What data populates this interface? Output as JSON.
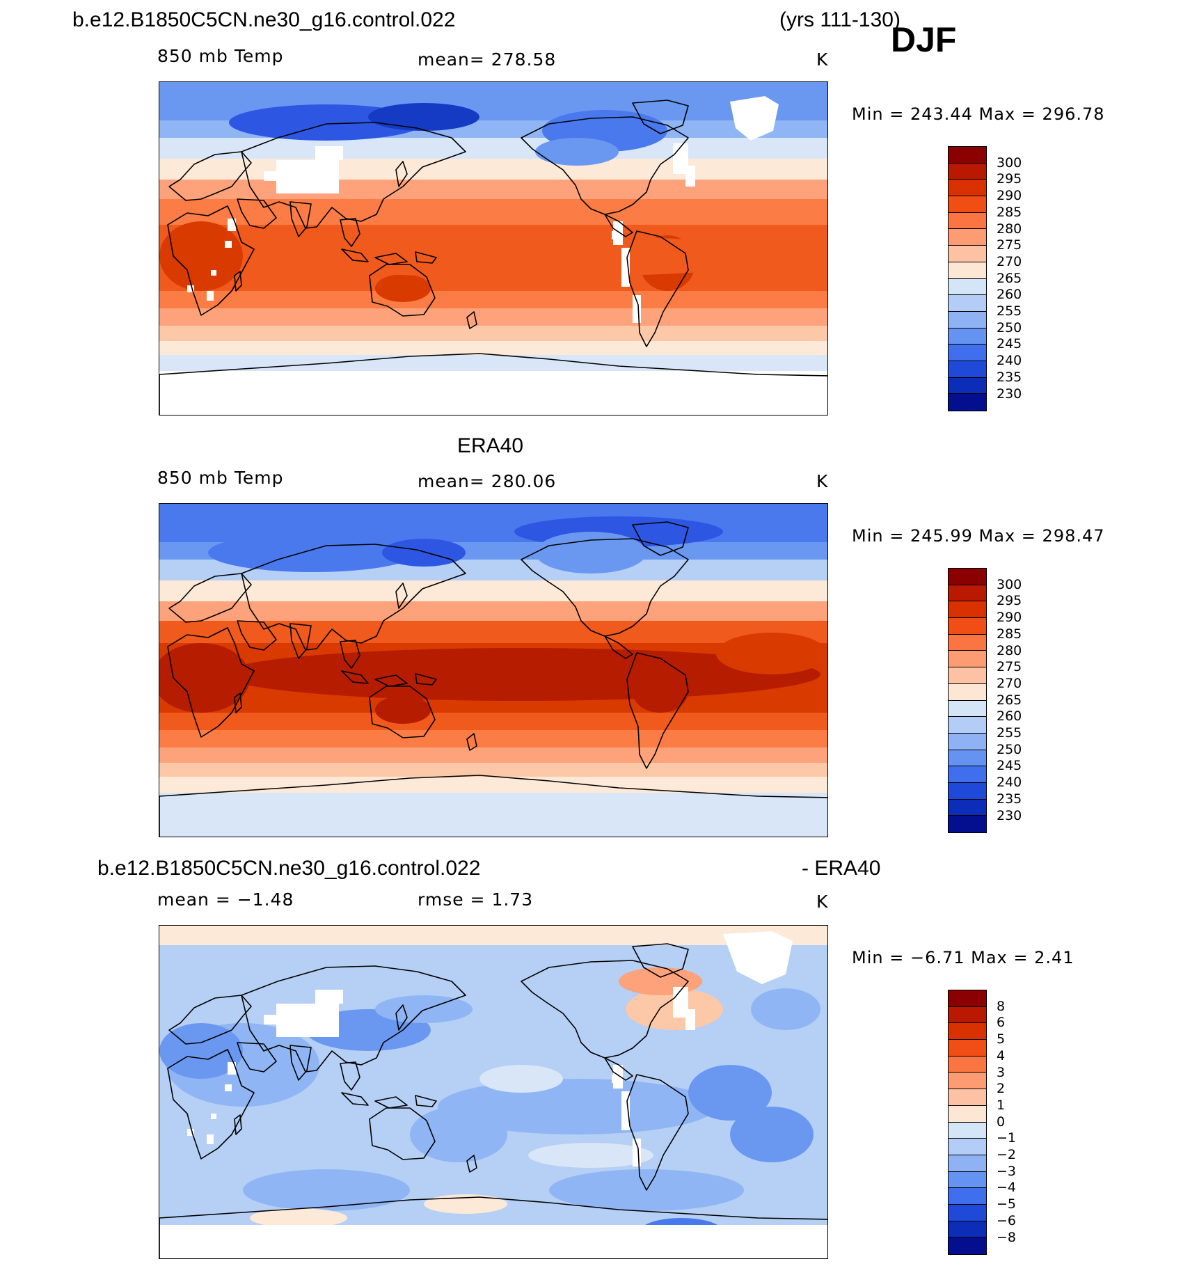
{
  "header": {
    "case_name": "b.e12.B1850C5CN.ne30_g16.control.022",
    "years": "(yrs 111-130)",
    "season": "DJF"
  },
  "panels": [
    {
      "id": "model",
      "title": "",
      "left_label": "850 mb Temp",
      "center_label": "mean=  278.58",
      "right_label": "K",
      "minmax": "Min  =  243.44  Max  =  296.78",
      "colorbar_labels": [
        "300",
        "295",
        "290",
        "285",
        "280",
        "275",
        "270",
        "265",
        "260",
        "255",
        "250",
        "245",
        "240",
        "235",
        "230"
      ],
      "missing_data": true
    },
    {
      "id": "obs",
      "title": "ERA40",
      "left_label": "850 mb Temp",
      "center_label": "mean=  280.06",
      "right_label": "K",
      "minmax": "Min  =  245.99  Max  =  298.47",
      "colorbar_labels": [
        "300",
        "295",
        "290",
        "285",
        "280",
        "275",
        "270",
        "265",
        "260",
        "255",
        "250",
        "245",
        "240",
        "235",
        "230"
      ],
      "missing_data": false
    },
    {
      "id": "diff",
      "title": "b.e12.B1850C5CN.ne30_g16.control.022",
      "title_right": "- ERA40",
      "left_label": "mean =   −1.48",
      "center_label": "rmse =    1.73",
      "right_label": "K",
      "minmax": "Min  =   −6.71  Max  =    2.41",
      "colorbar_labels": [
        "8",
        "6",
        "5",
        "4",
        "3",
        "2",
        "1",
        "0",
        "−1",
        "−2",
        "−3",
        "−4",
        "−5",
        "−6",
        "−8"
      ],
      "missing_data": true
    }
  ],
  "colors": {
    "levels": [
      "#8b0000",
      "#b51c00",
      "#d93a00",
      "#f05a1c",
      "#fb7d45",
      "#fda27a",
      "#fdc8a8",
      "#fde9d8",
      "#d8e6f7",
      "#b5cff5",
      "#90b5f4",
      "#6a98f1",
      "#4a79ee",
      "#2d57e3",
      "#153bc4",
      "#0a23a3",
      "#000c8a"
    ],
    "colorbar_swatches": [
      "#8b0000",
      "#b81900",
      "#d93200",
      "#f04e14",
      "#fb7542",
      "#fd9b72",
      "#fdc2a3",
      "#fde6d4",
      "#d5e5f8",
      "#b3cdf6",
      "#8eb2f4",
      "#6593f1",
      "#3f6fec",
      "#1f49d9",
      "#0c2db7",
      "#030f8f"
    ]
  }
}
